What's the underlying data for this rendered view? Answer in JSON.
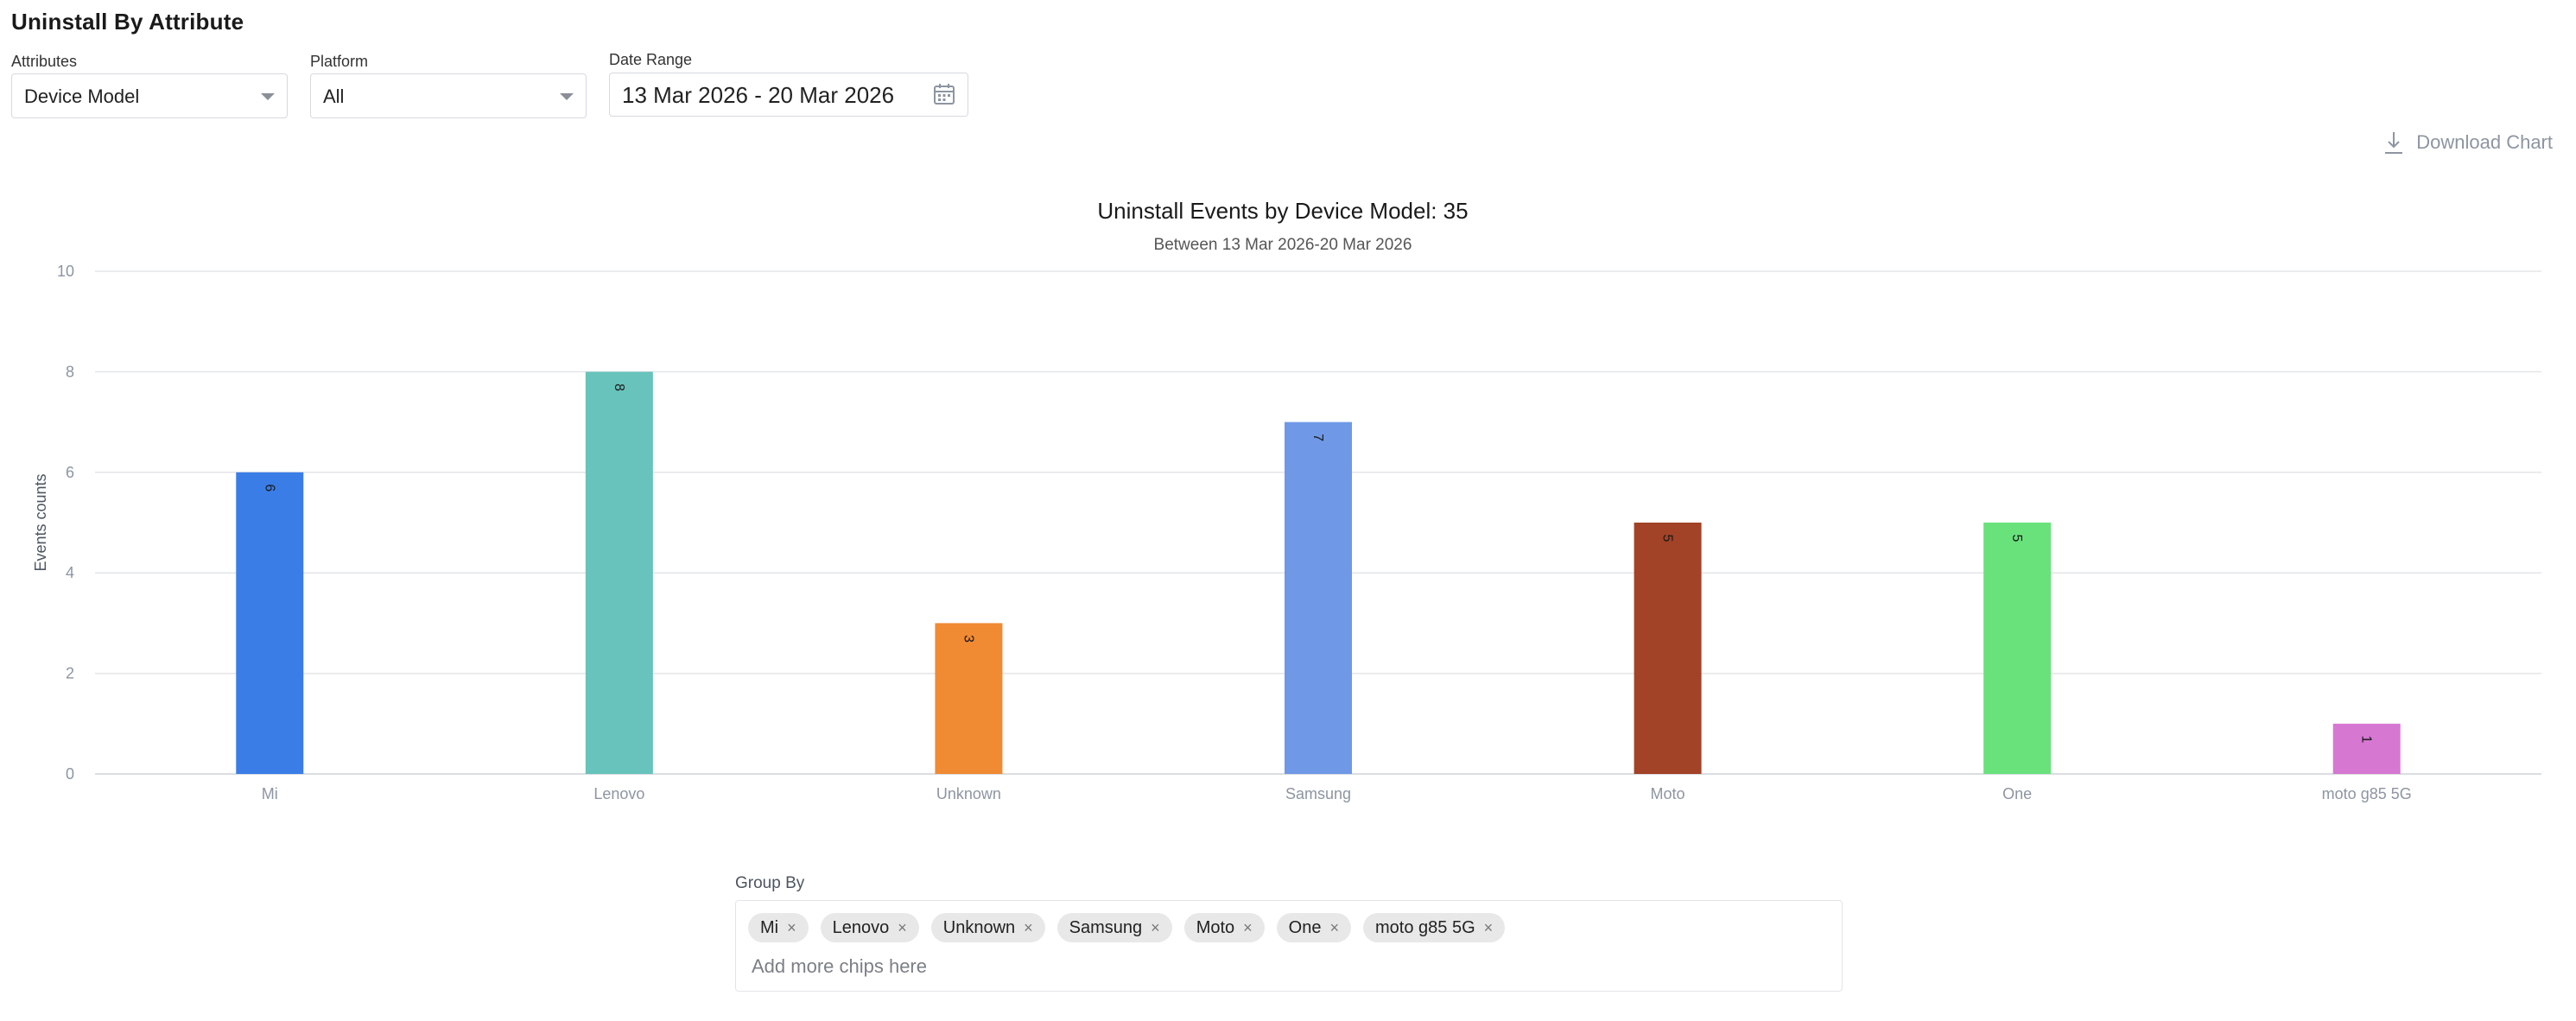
{
  "page": {
    "title": "Uninstall By Attribute"
  },
  "filters": {
    "attributes": {
      "label": "Attributes",
      "value": "Device Model"
    },
    "platform": {
      "label": "Platform",
      "value": "All"
    },
    "date_range": {
      "label": "Date Range",
      "value": "13 Mar 2026 - 20 Mar 2026"
    }
  },
  "toolbar": {
    "download_label": "Download Chart",
    "download_icon": "download-icon"
  },
  "chart_data": {
    "type": "bar",
    "title": "Uninstall Events by Device Model: 35",
    "subtitle": "Between 13 Mar 2026-20 Mar 2026",
    "xlabel": "",
    "ylabel": "Events counts",
    "ylim": [
      0,
      10
    ],
    "yticks": [
      0,
      2,
      4,
      6,
      8,
      10
    ],
    "grid": true,
    "categories": [
      "Mi",
      "Lenovo",
      "Unknown",
      "Samsung",
      "Moto",
      "One",
      "moto g85 5G"
    ],
    "values": [
      6,
      8,
      3,
      7,
      5,
      5,
      1
    ],
    "colors": [
      "#3a7de6",
      "#67c3bb",
      "#f08a33",
      "#6f98e6",
      "#a24227",
      "#69e27c",
      "#d677d2"
    ]
  },
  "group_by": {
    "label": "Group By",
    "chips": [
      "Mi",
      "Lenovo",
      "Unknown",
      "Samsung",
      "Moto",
      "One",
      "moto g85 5G"
    ],
    "chip_close_glyph": "×",
    "placeholder": "Add more chips here"
  }
}
